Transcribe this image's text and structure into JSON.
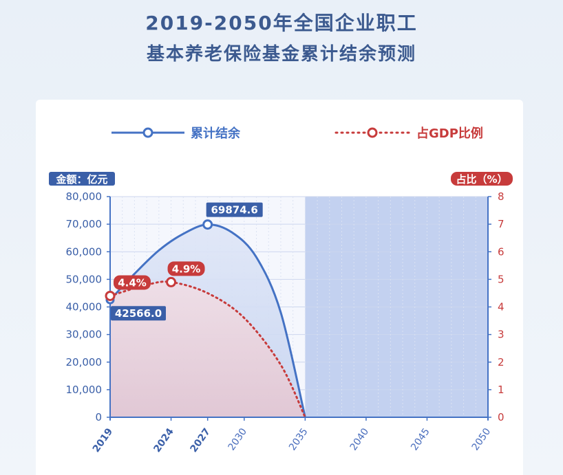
{
  "title_line1": "2019-2050年全国企业职工",
  "title_line2": "基本养老保险基金累计结余预测",
  "chart_data": {
    "type": "line",
    "legend": [
      {
        "name": "累计结余",
        "color": "#4472c4",
        "style": "solid"
      },
      {
        "name": "占GDP比例",
        "color": "#c73b3b",
        "style": "dotted"
      }
    ],
    "legend_position": "top",
    "y_left": {
      "label": "金额：亿元",
      "min": 0,
      "max": 80000,
      "ticks": [
        "0",
        "10,000",
        "20,000",
        "30,000",
        "40,000",
        "50,000",
        "60,000",
        "70,000",
        "80,000"
      ]
    },
    "y_right": {
      "label": "占比（%）",
      "min": 0,
      "max": 8,
      "ticks": [
        "0",
        "1",
        "2",
        "3",
        "4",
        "5",
        "6",
        "7",
        "8"
      ]
    },
    "x_axis": {
      "min": 2019,
      "max": 2050,
      "ticks": [
        {
          "value": 2019,
          "label": "2019",
          "highlight": true
        },
        {
          "value": 2024,
          "label": "2024",
          "highlight": true
        },
        {
          "value": 2027,
          "label": "2027",
          "highlight": true
        },
        {
          "value": 2030,
          "label": "2030",
          "highlight": false
        },
        {
          "value": 2035,
          "label": "2035",
          "highlight": false
        },
        {
          "value": 2040,
          "label": "2040",
          "highlight": false
        },
        {
          "value": 2045,
          "label": "2045",
          "highlight": false
        },
        {
          "value": 2050,
          "label": "2050",
          "highlight": false
        }
      ]
    },
    "grid": true,
    "series": [
      {
        "name": "累计结余",
        "axis": "left",
        "color": "#4472c4",
        "points": [
          [
            2019,
            42566.0
          ],
          [
            2021,
            52000
          ],
          [
            2023,
            60500
          ],
          [
            2025,
            66500
          ],
          [
            2027,
            69874.6
          ],
          [
            2029,
            67000
          ],
          [
            2031,
            58000
          ],
          [
            2033,
            38000
          ],
          [
            2035,
            0
          ]
        ],
        "markers": [
          [
            2027,
            69874.6
          ]
        ],
        "labels": [
          {
            "x": 2019,
            "y": 42566.0,
            "text": "42566.0",
            "pos": "below"
          },
          {
            "x": 2027,
            "y": 69874.6,
            "text": "69874.6",
            "pos": "above"
          }
        ]
      },
      {
        "name": "占GDP比例",
        "axis": "right",
        "color": "#c73b3b",
        "points": [
          [
            2019,
            4.4
          ],
          [
            2022,
            4.8
          ],
          [
            2024,
            4.9
          ],
          [
            2027,
            4.5
          ],
          [
            2030,
            3.6
          ],
          [
            2033,
            1.9
          ],
          [
            2035,
            0
          ]
        ],
        "markers": [
          [
            2019,
            4.4
          ],
          [
            2024,
            4.9
          ]
        ],
        "labels": [
          {
            "x": 2019,
            "y": 4.4,
            "text": "4.4%",
            "pos": "right"
          },
          {
            "x": 2024,
            "y": 4.9,
            "text": "4.9%",
            "pos": "above"
          }
        ]
      }
    ]
  }
}
